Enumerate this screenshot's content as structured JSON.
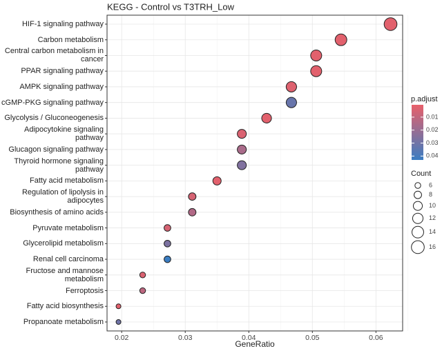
{
  "chart_data": {
    "type": "dotplot",
    "title": "KEGG - Control vs T3TRH_Low",
    "x_label": "GeneRatio",
    "categories": [
      "HIF-1 signaling pathway",
      "Carbon metabolism",
      "Central carbon metabolism in\ncancer",
      "PPAR signaling pathway",
      "AMPK signaling pathway",
      "cGMP-PKG signaling pathway",
      "Glycolysis / Gluconeogenesis",
      "Adipocytokine signaling\npathway",
      "Glucagon signaling pathway",
      "Thyroid hormone signaling\npathway",
      "Fatty acid metabolism",
      "Regulation of lipolysis in\nadipocytes",
      "Biosynthesis of amino acids",
      "Pyruvate metabolism",
      "Glycerolipid metabolism",
      "Renal cell carcinoma",
      "Fructose and mannose\nmetabolism",
      "Ferroptosis",
      "Fatty acid biosynthesis",
      "Propanoate metabolism"
    ],
    "values": [
      0.0623,
      0.0545,
      0.0506,
      0.0506,
      0.0467,
      0.0467,
      0.0428,
      0.0389,
      0.0389,
      0.0389,
      0.035,
      0.0311,
      0.0311,
      0.0272,
      0.0272,
      0.0272,
      0.0233,
      0.0233,
      0.0195,
      0.0195
    ],
    "count": [
      16,
      14,
      13,
      13,
      12,
      12,
      11,
      10,
      10,
      10,
      9,
      8,
      8,
      7,
      7,
      7,
      6,
      6,
      5,
      5
    ],
    "p_adjust": [
      0.002,
      0.002,
      0.002,
      0.002,
      0.003,
      0.032,
      0.002,
      0.004,
      0.016,
      0.026,
      0.002,
      0.005,
      0.014,
      0.005,
      0.027,
      0.043,
      0.004,
      0.011,
      0.002,
      0.03
    ],
    "xlim": [
      0.0177,
      0.0642
    ],
    "xticks": [
      0.02,
      0.03,
      0.04,
      0.05,
      0.06
    ],
    "grid": true,
    "color_title": "p.adjust",
    "color_low": "#e8606a",
    "color_high": "#3b7dc2",
    "color_lim": [
      0.0005,
      0.043
    ],
    "color_ticks": [
      0.01,
      0.02,
      0.03,
      0.04
    ],
    "size_title": "Count",
    "size_ticks": [
      6,
      8,
      10,
      12,
      14,
      16
    ]
  }
}
